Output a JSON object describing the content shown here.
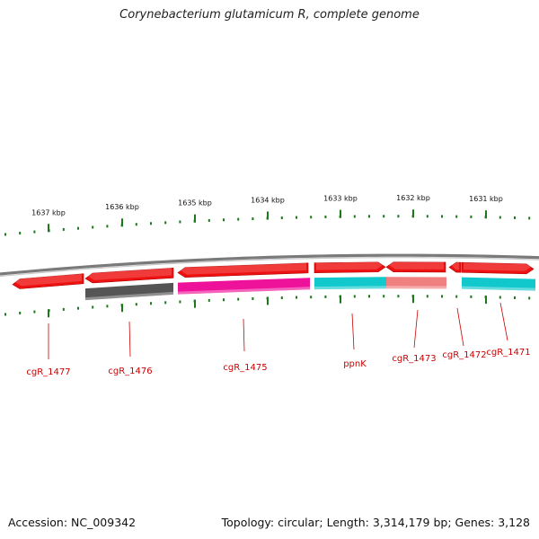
{
  "title": "Corynebacterium glutamicum R, complete genome",
  "footer": {
    "accession": "Accession: NC_009342",
    "summary": "Topology: circular; Length: 3,314,179 bp; Genes: 3,128"
  },
  "scale": {
    "labels": [
      "1637 kbp",
      "1636 kbp",
      "1635 kbp",
      "1634 kbp",
      "1633 kbp",
      "1632 kbp",
      "1631 kbp"
    ],
    "tick_color": "#1a7a1a"
  },
  "genes": [
    {
      "name": "cgR_1477",
      "strand": "-",
      "color": "#ee1111"
    },
    {
      "name": "cgR_1476",
      "strand": "-",
      "color": "#ee1111",
      "function_color": "#555555"
    },
    {
      "name": "cgR_1475",
      "strand": "-",
      "color": "#ee1111",
      "function_color": "#ee1199"
    },
    {
      "name": "ppnK",
      "strand": "+",
      "color": "#ee1111",
      "function_color": "#11c8cc"
    },
    {
      "name": "cgR_1473",
      "strand": "-",
      "color": "#ee1111",
      "function_color": "#f08080"
    },
    {
      "name": "cgR_1472",
      "strand": "-",
      "color": "#ee1111"
    },
    {
      "name": "cgR_1471",
      "strand": "+",
      "color": "#ee1111",
      "function_color": "#11c8cc"
    }
  ],
  "colors": {
    "backbone": "#8c8c8c",
    "label": "#cc0000",
    "leader": "#cc0000"
  }
}
